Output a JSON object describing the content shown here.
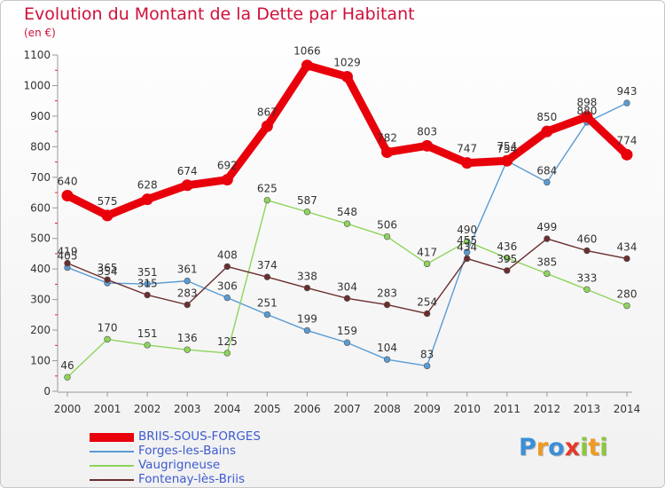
{
  "title": "Evolution du Montant de la Dette par Habitant",
  "subtitle": "(en €)",
  "logo": {
    "text": "Proxiti",
    "letters": [
      {
        "ch": "P",
        "color": "#3a8fd6"
      },
      {
        "ch": "r",
        "color": "#f29a1f"
      },
      {
        "ch": "o",
        "color": "#3a8fd6"
      },
      {
        "ch": "x",
        "color": "#e33a2a"
      },
      {
        "ch": "i",
        "color": "#8cc63f"
      },
      {
        "ch": "t",
        "color": "#f29a1f"
      },
      {
        "ch": "i",
        "color": "#8cc63f"
      }
    ]
  },
  "chart_data": {
    "type": "line",
    "title": "Evolution du Montant de la Dette par Habitant",
    "subtitle": "(en €)",
    "x": [
      "2000",
      "2001",
      "2002",
      "2003",
      "2004",
      "2005",
      "2006",
      "2007",
      "2008",
      "2009",
      "2010",
      "2011",
      "2012",
      "2013",
      "2014"
    ],
    "ylim": [
      0,
      1100
    ],
    "yticks": [
      0,
      100,
      200,
      300,
      400,
      500,
      600,
      700,
      800,
      900,
      1000,
      1100
    ],
    "grid": false,
    "legend_position": "bottom-left",
    "series": [
      {
        "name": "BRIIS-SOUS-FORGES",
        "color": "#e8000b",
        "emphasis": true,
        "values": [
          640,
          575,
          628,
          674,
          692,
          867,
          1066,
          1029,
          782,
          803,
          747,
          754,
          850,
          898,
          774
        ]
      },
      {
        "name": "Forges-les-Bains",
        "color": "#5a9bd4",
        "emphasis": false,
        "values": [
          405,
          354,
          351,
          361,
          306,
          251,
          199,
          159,
          104,
          83,
          455,
          754,
          684,
          880,
          943
        ]
      },
      {
        "name": "Vaugrigneuse",
        "color": "#8ed45a",
        "emphasis": false,
        "values": [
          46,
          170,
          151,
          136,
          125,
          625,
          587,
          548,
          506,
          417,
          490,
          436,
          385,
          333,
          280
        ]
      },
      {
        "name": "Fontenay-lès-Briis",
        "color": "#6b2e2e",
        "emphasis": false,
        "values": [
          419,
          365,
          315,
          283,
          408,
          374,
          338,
          304,
          283,
          254,
          434,
          395,
          499,
          460,
          434
        ]
      }
    ]
  }
}
